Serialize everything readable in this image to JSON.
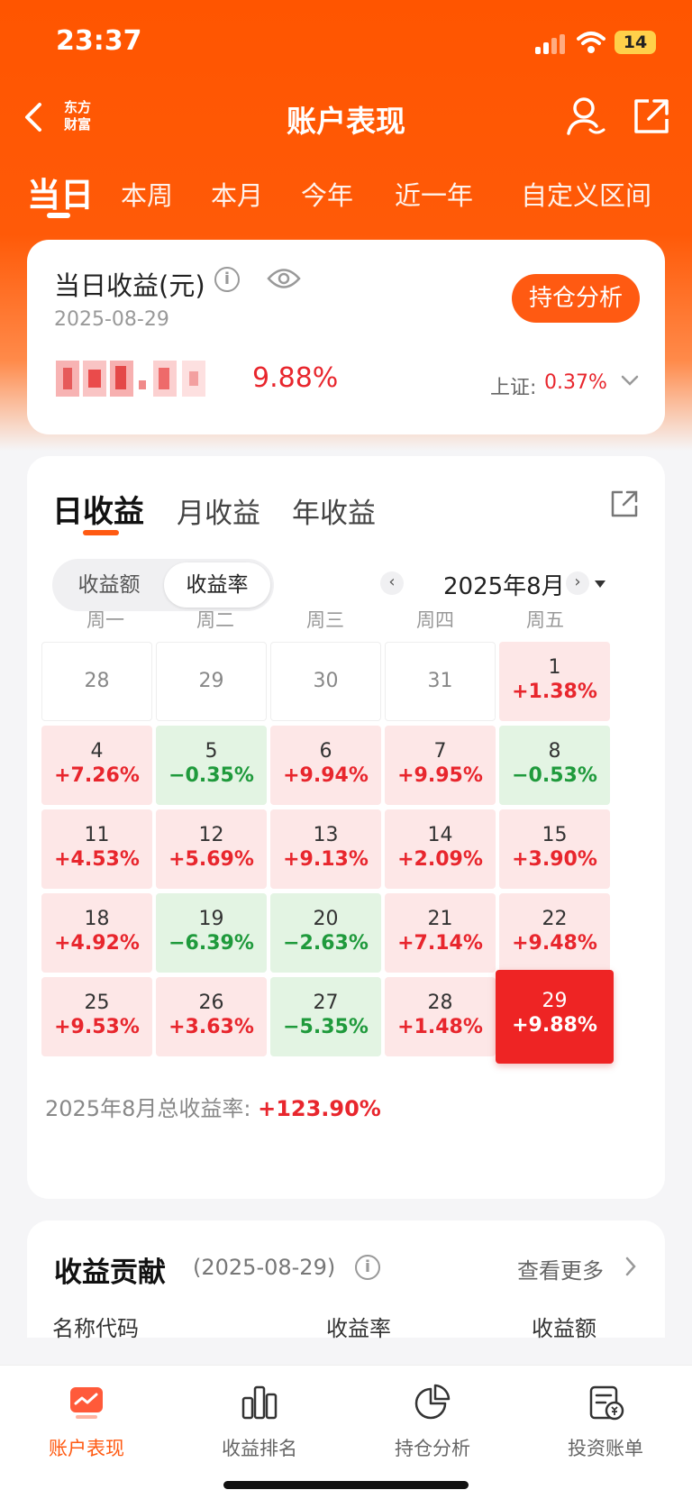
{
  "status": {
    "time": "23:37",
    "battery": "14"
  },
  "nav": {
    "logo_line1": "东方",
    "logo_line2": "财富",
    "title": "账户表现"
  },
  "period_tabs": [
    "当日",
    "本周",
    "本月",
    "今年",
    "近一年",
    "自定义区间"
  ],
  "summary": {
    "title": "当日收益(元)",
    "info": "i",
    "date": "2025-08-29",
    "holdings_button": "持仓分析",
    "rate": "9.88%",
    "index_label": "上证:",
    "index_value": "0.37%"
  },
  "returns_tabs": [
    "日收益",
    "月收益",
    "年收益"
  ],
  "segment": [
    "收益额",
    "收益率"
  ],
  "month": {
    "prev": "‹",
    "label": "2025年8月",
    "next": "›"
  },
  "weekdays": [
    "周一",
    "周二",
    "周三",
    "周四",
    "周五"
  ],
  "calendar": [
    [
      {
        "d": "28",
        "t": "out"
      },
      {
        "d": "29",
        "t": "out"
      },
      {
        "d": "30",
        "t": "out"
      },
      {
        "d": "31",
        "t": "out"
      },
      {
        "d": "1",
        "r": "+1.38%",
        "t": "up"
      }
    ],
    [
      {
        "d": "4",
        "r": "+7.26%",
        "t": "up"
      },
      {
        "d": "5",
        "r": "−0.35%",
        "t": "down"
      },
      {
        "d": "6",
        "r": "+9.94%",
        "t": "up"
      },
      {
        "d": "7",
        "r": "+9.95%",
        "t": "up"
      },
      {
        "d": "8",
        "r": "−0.53%",
        "t": "down"
      }
    ],
    [
      {
        "d": "11",
        "r": "+4.53%",
        "t": "up"
      },
      {
        "d": "12",
        "r": "+5.69%",
        "t": "up"
      },
      {
        "d": "13",
        "r": "+9.13%",
        "t": "up"
      },
      {
        "d": "14",
        "r": "+2.09%",
        "t": "up"
      },
      {
        "d": "15",
        "r": "+3.90%",
        "t": "up"
      }
    ],
    [
      {
        "d": "18",
        "r": "+4.92%",
        "t": "up"
      },
      {
        "d": "19",
        "r": "−6.39%",
        "t": "down"
      },
      {
        "d": "20",
        "r": "−2.63%",
        "t": "down"
      },
      {
        "d": "21",
        "r": "+7.14%",
        "t": "up"
      },
      {
        "d": "22",
        "r": "+9.48%",
        "t": "up"
      }
    ],
    [
      {
        "d": "25",
        "r": "+9.53%",
        "t": "up"
      },
      {
        "d": "26",
        "r": "+3.63%",
        "t": "up"
      },
      {
        "d": "27",
        "r": "−5.35%",
        "t": "down"
      },
      {
        "d": "28",
        "r": "+1.48%",
        "t": "up"
      },
      {
        "d": "29",
        "r": "+9.88%",
        "t": "sel"
      }
    ]
  ],
  "total": {
    "label": "2025年8月总收益率:",
    "value": "+123.90%"
  },
  "contribution": {
    "title": "收益贡献",
    "date": "(2025-08-29)",
    "info": "i",
    "more": "查看更多",
    "columns": [
      "名称代码",
      "收益率",
      "收益额"
    ]
  },
  "bottom_nav": [
    {
      "label": "账户表现",
      "icon": "account-performance-icon",
      "active": true
    },
    {
      "label": "收益排名",
      "icon": "ranking-bar-icon",
      "active": false
    },
    {
      "label": "持仓分析",
      "icon": "pie-chart-icon",
      "active": false
    },
    {
      "label": "投资账单",
      "icon": "bill-icon",
      "active": false
    }
  ],
  "colors": {
    "brand": "#ff5500",
    "up": "#e8262d",
    "down": "#1f9a3c",
    "selected": "#ee2424"
  }
}
